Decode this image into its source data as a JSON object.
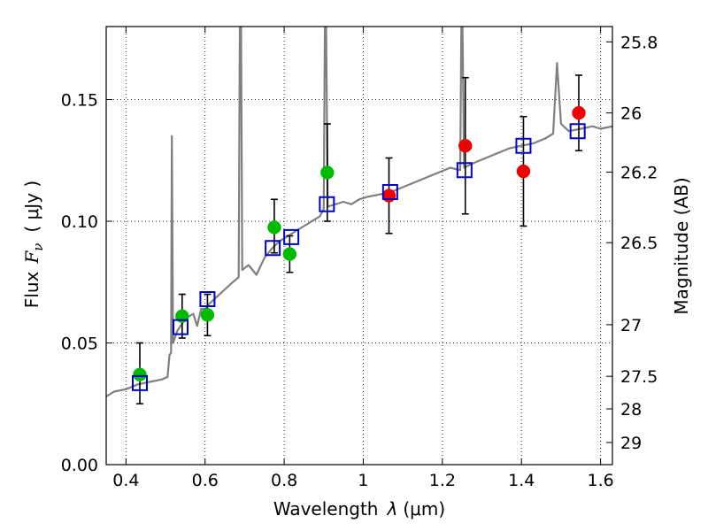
{
  "chart_data": {
    "type": "scatter",
    "xlabel": "Wavelength  λ (μm)",
    "ylabel": "Flux  F_ν  ( μJy )",
    "ylabel_parts": {
      "flux": "Flux",
      "f": "F",
      "nu": "ν",
      "unit": "( μJy )"
    },
    "xlabel_parts": {
      "word": "Wavelength",
      "lambda": "λ",
      "unit": "(μm)"
    },
    "y2label": "Magnitude (AB)",
    "xlim": [
      0.35,
      1.63
    ],
    "ylim": [
      0.0,
      0.18
    ],
    "grid": true,
    "x_ticks": [
      0.4,
      0.6,
      0.8,
      1.0,
      1.2,
      1.4,
      1.6
    ],
    "x_tick_labels": [
      "0.4",
      "0.6",
      "0.8",
      "1",
      "1.2",
      "1.4",
      "1.6"
    ],
    "y_ticks": [
      0.0,
      0.05,
      0.1,
      0.15
    ],
    "y_tick_labels": [
      "0.00",
      "0.05",
      "0.10",
      "0.15"
    ],
    "mag_ticks": [
      {
        "label": "25.8",
        "flux": 0.1737
      },
      {
        "label": "26",
        "flux": 0.1445
      },
      {
        "label": "26.2",
        "flux": 0.1202
      },
      {
        "label": "26.5",
        "flux": 0.0912
      },
      {
        "label": "27",
        "flux": 0.0575
      },
      {
        "label": "27.5",
        "flux": 0.0363
      },
      {
        "label": "28",
        "flux": 0.0229
      },
      {
        "label": "29",
        "flux": 0.0091
      }
    ],
    "colors": {
      "green": "#00bb00",
      "red": "#ee0000",
      "blue": "#0000cc",
      "sed": "#808080",
      "errorbar": "#000000"
    },
    "series": [
      {
        "name": "green-observed",
        "marker": "circle",
        "color": "#00bb00",
        "points": [
          {
            "x": 0.435,
            "y": 0.037,
            "yerr": [
              0.025,
              0.05
            ]
          },
          {
            "x": 0.542,
            "y": 0.061,
            "yerr": [
              0.052,
              0.07
            ]
          },
          {
            "x": 0.606,
            "y": 0.0615,
            "yerr": [
              0.053,
              0.07
            ]
          },
          {
            "x": 0.775,
            "y": 0.0975,
            "yerr": [
              0.087,
              0.109
            ]
          },
          {
            "x": 0.814,
            "y": 0.0865,
            "yerr": [
              0.079,
              0.094
            ]
          },
          {
            "x": 0.909,
            "y": 0.12,
            "yerr": [
              0.1,
              0.14
            ]
          }
        ]
      },
      {
        "name": "red-observed",
        "marker": "circle",
        "color": "#ee0000",
        "points": [
          {
            "x": 1.065,
            "y": 0.1105,
            "yerr": [
              0.095,
              0.126
            ]
          },
          {
            "x": 1.258,
            "y": 0.131,
            "yerr": [
              0.103,
              0.159
            ]
          },
          {
            "x": 1.405,
            "y": 0.1205,
            "yerr": [
              0.098,
              0.143
            ]
          },
          {
            "x": 1.545,
            "y": 0.1445,
            "yerr": [
              0.129,
              0.16
            ]
          }
        ]
      },
      {
        "name": "model-photometry",
        "marker": "square-open",
        "color": "#0000cc",
        "points": [
          {
            "x": 0.435,
            "y": 0.0335
          },
          {
            "x": 0.538,
            "y": 0.0565
          },
          {
            "x": 0.606,
            "y": 0.068
          },
          {
            "x": 0.771,
            "y": 0.089
          },
          {
            "x": 0.818,
            "y": 0.0935
          },
          {
            "x": 0.908,
            "y": 0.107
          },
          {
            "x": 1.068,
            "y": 0.112
          },
          {
            "x": 1.256,
            "y": 0.121
          },
          {
            "x": 1.405,
            "y": 0.131
          },
          {
            "x": 1.542,
            "y": 0.137
          }
        ]
      },
      {
        "name": "model-sed-spectrum",
        "marker": "line",
        "color": "#808080",
        "points": [
          {
            "x": 0.35,
            "y": 0.028
          },
          {
            "x": 0.37,
            "y": 0.03
          },
          {
            "x": 0.4,
            "y": 0.031
          },
          {
            "x": 0.43,
            "y": 0.033
          },
          {
            "x": 0.46,
            "y": 0.034
          },
          {
            "x": 0.49,
            "y": 0.035
          },
          {
            "x": 0.505,
            "y": 0.036
          },
          {
            "x": 0.51,
            "y": 0.045
          },
          {
            "x": 0.514,
            "y": 0.046
          },
          {
            "x": 0.516,
            "y": 0.135
          },
          {
            "x": 0.519,
            "y": 0.05
          },
          {
            "x": 0.53,
            "y": 0.055
          },
          {
            "x": 0.55,
            "y": 0.06
          },
          {
            "x": 0.57,
            "y": 0.062
          },
          {
            "x": 0.58,
            "y": 0.057
          },
          {
            "x": 0.59,
            "y": 0.064
          },
          {
            "x": 0.6,
            "y": 0.064
          },
          {
            "x": 0.61,
            "y": 0.066
          },
          {
            "x": 0.63,
            "y": 0.069
          },
          {
            "x": 0.65,
            "y": 0.072
          },
          {
            "x": 0.67,
            "y": 0.075
          },
          {
            "x": 0.685,
            "y": 0.077
          },
          {
            "x": 0.688,
            "y": 0.18
          },
          {
            "x": 0.691,
            "y": 0.18
          },
          {
            "x": 0.694,
            "y": 0.08
          },
          {
            "x": 0.71,
            "y": 0.082
          },
          {
            "x": 0.73,
            "y": 0.078
          },
          {
            "x": 0.75,
            "y": 0.085
          },
          {
            "x": 0.77,
            "y": 0.089
          },
          {
            "x": 0.79,
            "y": 0.092
          },
          {
            "x": 0.81,
            "y": 0.094
          },
          {
            "x": 0.83,
            "y": 0.096
          },
          {
            "x": 0.85,
            "y": 0.098
          },
          {
            "x": 0.87,
            "y": 0.1
          },
          {
            "x": 0.89,
            "y": 0.102
          },
          {
            "x": 0.9,
            "y": 0.105
          },
          {
            "x": 0.903,
            "y": 0.18
          },
          {
            "x": 0.906,
            "y": 0.18
          },
          {
            "x": 0.91,
            "y": 0.106
          },
          {
            "x": 0.93,
            "y": 0.107
          },
          {
            "x": 0.95,
            "y": 0.108
          },
          {
            "x": 0.97,
            "y": 0.107
          },
          {
            "x": 0.99,
            "y": 0.109
          },
          {
            "x": 1.01,
            "y": 0.11
          },
          {
            "x": 1.04,
            "y": 0.111
          },
          {
            "x": 1.07,
            "y": 0.112
          },
          {
            "x": 1.1,
            "y": 0.114
          },
          {
            "x": 1.13,
            "y": 0.116
          },
          {
            "x": 1.16,
            "y": 0.118
          },
          {
            "x": 1.19,
            "y": 0.12
          },
          {
            "x": 1.22,
            "y": 0.122
          },
          {
            "x": 1.245,
            "y": 0.121
          },
          {
            "x": 1.248,
            "y": 0.18
          },
          {
            "x": 1.251,
            "y": 0.18
          },
          {
            "x": 1.255,
            "y": 0.122
          },
          {
            "x": 1.28,
            "y": 0.124
          },
          {
            "x": 1.31,
            "y": 0.126
          },
          {
            "x": 1.34,
            "y": 0.128
          },
          {
            "x": 1.37,
            "y": 0.13
          },
          {
            "x": 1.4,
            "y": 0.131
          },
          {
            "x": 1.43,
            "y": 0.132
          },
          {
            "x": 1.46,
            "y": 0.134
          },
          {
            "x": 1.48,
            "y": 0.136
          },
          {
            "x": 1.49,
            "y": 0.165
          },
          {
            "x": 1.5,
            "y": 0.14
          },
          {
            "x": 1.52,
            "y": 0.137
          },
          {
            "x": 1.55,
            "y": 0.138
          },
          {
            "x": 1.58,
            "y": 0.139
          },
          {
            "x": 1.6,
            "y": 0.138
          },
          {
            "x": 1.63,
            "y": 0.139
          }
        ]
      }
    ]
  }
}
